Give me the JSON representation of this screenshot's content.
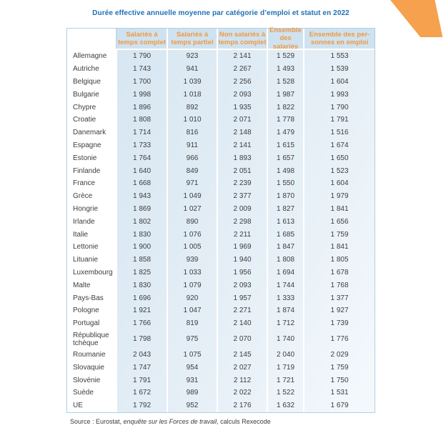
{
  "title": "Durée effective annuelle moyenne par catégorie d’emploi et statut en 2022",
  "colors": {
    "title_blue": "#2170b5",
    "header_orange": "#f0993f",
    "header_bg": "#cfe2f0",
    "body_blue_top": "#d4e5f1",
    "body_blue_bottom": "#f4f9fd",
    "table_border": "#b0cfe5",
    "corner_accent": "#f5a14d"
  },
  "table": {
    "column_headers": [
      {
        "lines": [
          "Salariés à",
          "temps complet"
        ]
      },
      {
        "lines": [
          "Salariés à",
          "temps partiel"
        ]
      },
      {
        "lines": [
          "Non salariés à",
          "temps complet"
        ]
      },
      {
        "lines": [
          "Ensemble",
          "des salariés"
        ]
      },
      {
        "lines": [
          "Ensemble des per-",
          "sonnes en emploi"
        ]
      }
    ],
    "rows": [
      {
        "country": "Allemagne",
        "values": [
          "1 790",
          "923",
          "2 141",
          "1 529",
          "1 553"
        ]
      },
      {
        "country": "Autriche",
        "values": [
          "1 743",
          "941",
          "2 267",
          "1 493",
          "1 539"
        ]
      },
      {
        "country": "Belgique",
        "values": [
          "1 700",
          "1 039",
          "2 256",
          "1 528",
          "1 604"
        ]
      },
      {
        "country": "Bulgarie",
        "values": [
          "1 998",
          "1 018",
          "2 093",
          "1 987",
          "1 993"
        ]
      },
      {
        "country": "Chypre",
        "values": [
          "1 896",
          "892",
          "1 935",
          "1 822",
          "1 790"
        ]
      },
      {
        "country": "Croatie",
        "values": [
          "1 808",
          "1 010",
          "2 071",
          "1 778",
          "1 791"
        ]
      },
      {
        "country": "Danemark",
        "values": [
          "1 714",
          "816",
          "2 148",
          "1 479",
          "1 516"
        ]
      },
      {
        "country": "Espagne",
        "values": [
          "1 733",
          "911",
          "2 141",
          "1 615",
          "1 674"
        ]
      },
      {
        "country": "Estonie",
        "values": [
          "1 764",
          "966",
          "1 893",
          "1 657",
          "1 650"
        ]
      },
      {
        "country": "Finlande",
        "values": [
          "1 640",
          "849",
          "2 051",
          "1 498",
          "1 523"
        ]
      },
      {
        "country": "France",
        "values": [
          "1 668",
          "971",
          "2 239",
          "1 550",
          "1 604"
        ]
      },
      {
        "country": "Grèce",
        "values": [
          "1 943",
          "1 049",
          "2 377",
          "1 870",
          "1 979"
        ]
      },
      {
        "country": "Hongrie",
        "values": [
          "1 869",
          "1 027",
          "2 009",
          "1 827",
          "1 841"
        ]
      },
      {
        "country": "Irlande",
        "values": [
          "1 802",
          "890",
          "2 298",
          "1 613",
          "1 656"
        ]
      },
      {
        "country": "Italie",
        "values": [
          "1 830",
          "1 076",
          "2 211",
          "1 685",
          "1 759"
        ]
      },
      {
        "country": "Lettonie",
        "values": [
          "1 900",
          "1 005",
          "1 969",
          "1 847",
          "1 841"
        ]
      },
      {
        "country": "Lituanie",
        "values": [
          "1 858",
          "939",
          "1 940",
          "1 808",
          "1 805"
        ]
      },
      {
        "country": "Luxembourg",
        "values": [
          "1 825",
          "1 033",
          "1 956",
          "1 694",
          "1 678"
        ]
      },
      {
        "country": "Malte",
        "values": [
          "1 830",
          "1 079",
          "2 093",
          "1 744",
          "1 768"
        ]
      },
      {
        "country": "Pays-Bas",
        "values": [
          "1 696",
          "920",
          "1 957",
          "1 333",
          "1 377"
        ]
      },
      {
        "country": "Pologne",
        "values": [
          "1 921",
          "1 047",
          "2 271",
          "1 874",
          "1 927"
        ]
      },
      {
        "country": "Portugal",
        "values": [
          "1 766",
          "819",
          "2 140",
          "1 712",
          "1 739"
        ]
      },
      {
        "country": "République tchèque",
        "values": [
          "1 798",
          "975",
          "2 070",
          "1 740",
          "1 776"
        ]
      },
      {
        "country": "Roumanie",
        "values": [
          "2 043",
          "1 075",
          "2 145",
          "2 040",
          "2 029"
        ]
      },
      {
        "country": "Slovaquie",
        "values": [
          "1 747",
          "954",
          "2 027",
          "1 719",
          "1 759"
        ]
      },
      {
        "country": "Slovénie",
        "values": [
          "1 791",
          "931",
          "2 112",
          "1 721",
          "1 750"
        ]
      },
      {
        "country": "Suède",
        "values": [
          "1 672",
          "989",
          "2 022",
          "1 522",
          "1 531"
        ]
      },
      {
        "country": "UE",
        "values": [
          "1 792",
          "952",
          "2 176",
          "1 632",
          "1 679"
        ]
      }
    ]
  },
  "source": {
    "prefix": "Source : Eurostat, ",
    "italic": "enquête sur les Forces de travail",
    "suffix": ", calculs Rexecode"
  }
}
